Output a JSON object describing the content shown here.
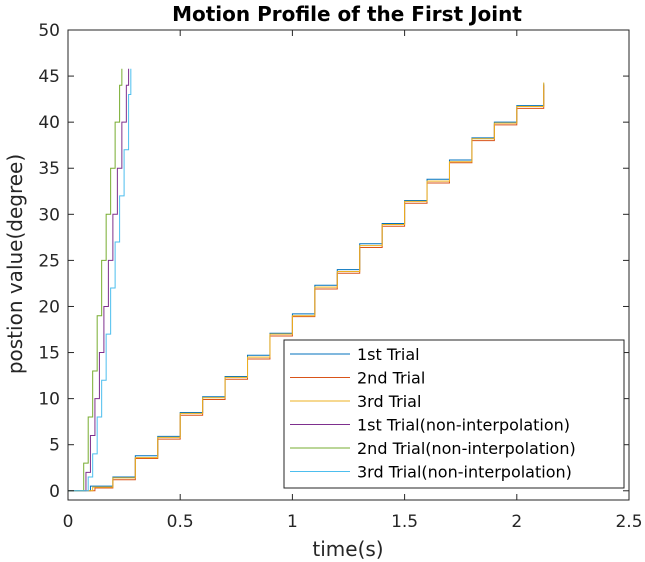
{
  "chart_data": {
    "type": "line",
    "title": "Motion Profile of the First Joint",
    "xlabel": "time(s)",
    "ylabel": "postion value(degree)",
    "xlim": [
      0,
      2.5
    ],
    "ylim": [
      -1,
      50
    ],
    "xticks": [
      0,
      0.5,
      1,
      1.5,
      2,
      2.5
    ],
    "xtick_labels": [
      "0",
      "0.5",
      "1",
      "1.5",
      "2",
      "2.5"
    ],
    "yticks": [
      0,
      5,
      10,
      15,
      20,
      25,
      30,
      35,
      40,
      45,
      50
    ],
    "ytick_labels": [
      "0",
      "5",
      "10",
      "15",
      "20",
      "25",
      "30",
      "35",
      "40",
      "45",
      "50"
    ],
    "grid": false,
    "legend_position": "bottom-right",
    "series": [
      {
        "name": "1st Trial",
        "color": "#0072BD",
        "x": [
          0.0,
          0.08,
          0.1,
          0.2,
          0.3,
          0.4,
          0.5,
          0.6,
          0.7,
          0.8,
          0.9,
          1.0,
          1.1,
          1.2,
          1.3,
          1.4,
          1.5,
          1.6,
          1.7,
          1.8,
          1.9,
          2.0,
          2.12
        ],
        "y": [
          0.0,
          0.0,
          0.5,
          1.5,
          3.8,
          5.9,
          8.5,
          10.2,
          12.4,
          14.7,
          17.1,
          19.2,
          22.3,
          24.0,
          26.8,
          29.0,
          31.5,
          33.8,
          35.9,
          38.3,
          40.0,
          41.8,
          44.2
        ]
      },
      {
        "name": "2nd Trial",
        "color": "#D95319",
        "x": [
          0.0,
          0.1,
          0.12,
          0.2,
          0.3,
          0.4,
          0.5,
          0.6,
          0.7,
          0.8,
          0.9,
          1.0,
          1.1,
          1.2,
          1.3,
          1.4,
          1.5,
          1.6,
          1.7,
          1.8,
          1.9,
          2.0,
          2.12
        ],
        "y": [
          0.0,
          0.0,
          0.3,
          1.2,
          3.5,
          5.6,
          8.2,
          9.9,
          12.1,
          14.3,
          16.8,
          18.9,
          21.9,
          23.6,
          26.4,
          28.7,
          31.2,
          33.4,
          35.6,
          38.0,
          39.7,
          41.5,
          44.0
        ]
      },
      {
        "name": "3rd Trial",
        "color": "#EDB120",
        "x": [
          0.0,
          0.09,
          0.11,
          0.2,
          0.3,
          0.4,
          0.5,
          0.6,
          0.7,
          0.8,
          0.9,
          1.0,
          1.1,
          1.2,
          1.3,
          1.4,
          1.5,
          1.6,
          1.7,
          1.8,
          1.9,
          2.0,
          2.12
        ],
        "y": [
          0.0,
          0.0,
          0.4,
          1.4,
          3.6,
          5.8,
          8.4,
          10.1,
          12.3,
          14.5,
          17.0,
          19.0,
          22.1,
          23.8,
          26.6,
          28.9,
          31.4,
          33.6,
          35.7,
          38.2,
          39.9,
          41.7,
          44.3
        ]
      },
      {
        "name": "1st Trial(non-interpolation)",
        "color": "#7E2F8E",
        "x": [
          0.0,
          0.06,
          0.08,
          0.1,
          0.12,
          0.14,
          0.16,
          0.18,
          0.2,
          0.22,
          0.24,
          0.26,
          0.27
        ],
        "y": [
          0.0,
          0.0,
          2.0,
          6.0,
          10.0,
          15.0,
          20.0,
          25.0,
          30.0,
          35.0,
          40.0,
          44.0,
          45.8
        ]
      },
      {
        "name": "2nd Trial(non-interpolation)",
        "color": "#77AC30",
        "x": [
          0.0,
          0.05,
          0.07,
          0.09,
          0.11,
          0.13,
          0.15,
          0.17,
          0.19,
          0.21,
          0.23,
          0.24
        ],
        "y": [
          0.0,
          0.0,
          3.0,
          8.0,
          13.0,
          19.0,
          25.0,
          30.0,
          35.0,
          40.0,
          44.0,
          45.8
        ]
      },
      {
        "name": "3rd Trial(non-interpolation)",
        "color": "#4DBEEE",
        "x": [
          0.0,
          0.07,
          0.09,
          0.11,
          0.13,
          0.15,
          0.17,
          0.19,
          0.21,
          0.23,
          0.25,
          0.27,
          0.28
        ],
        "y": [
          0.0,
          0.0,
          1.5,
          4.0,
          8.0,
          12.0,
          17.0,
          22.0,
          27.0,
          32.0,
          37.0,
          43.0,
          45.8
        ]
      }
    ]
  }
}
